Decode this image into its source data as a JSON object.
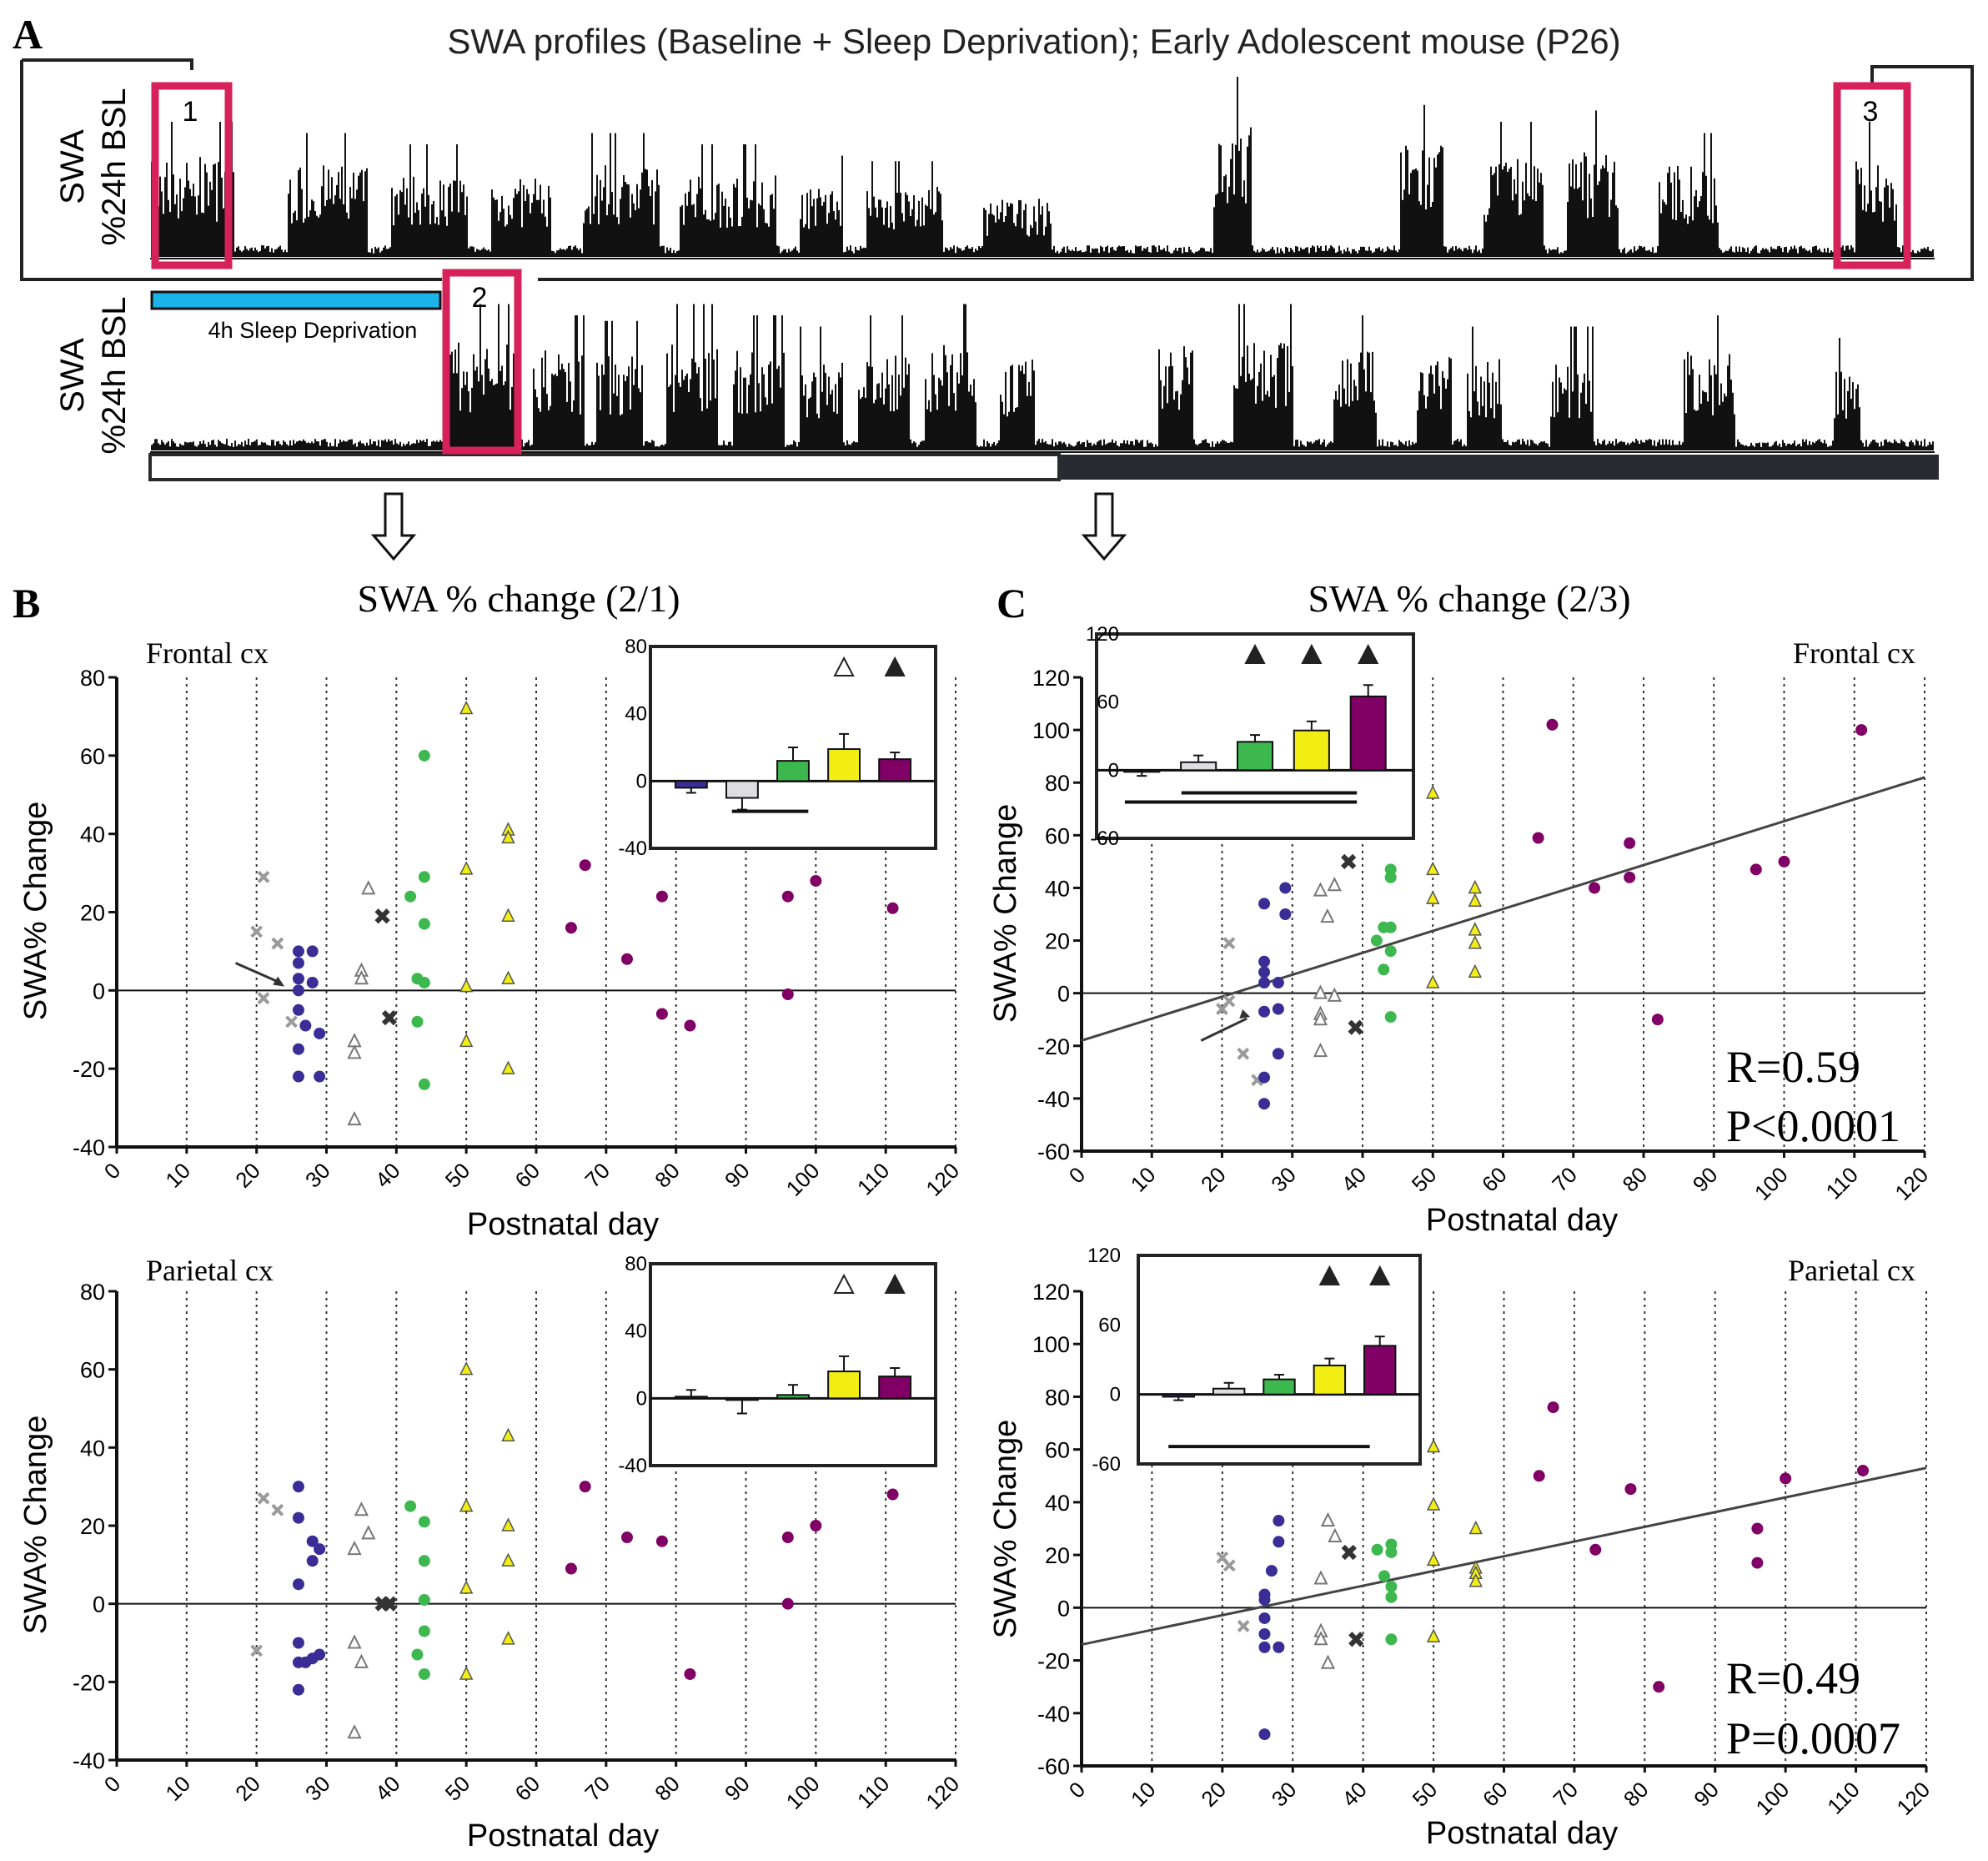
{
  "figure": {
    "panel_a_letter": "A",
    "panel_b_letter": "B",
    "panel_c_letter": "C",
    "panel_a_title": "SWA profiles (Baseline + Sleep Deprivation);  Early Adolescent mouse (P26)",
    "panel_a_ylabel_1": "SWA",
    "panel_a_ylabel_2": "%24h BSL",
    "sd_label": "4h Sleep Deprivation",
    "box_labels": [
      "1",
      "2",
      "3"
    ],
    "panel_b_title": "SWA % change (2/1)",
    "panel_c_title": "SWA % change (2/3)",
    "region_frontal": "Frontal cx",
    "region_parietal": "Parietal cx",
    "ylabel": "SWA% Change",
    "xlabel": "Postnatal day",
    "colors": {
      "red_box": "#d6215a",
      "sd_bar": "#1cb4e8",
      "black": "#000000",
      "purple": "#800066",
      "yellow": "#f2ee14",
      "green": "#3db84e",
      "blue": "#3a2d96",
      "grey": "#9a9a9a"
    }
  },
  "chart_data": [
    {
      "id": "B-frontal",
      "type": "scatter",
      "region": "Frontal cx",
      "xlabel": "Postnatal day",
      "ylabel": "SWA% Change",
      "xlim": [
        0,
        120
      ],
      "ylim": [
        -40,
        80
      ],
      "xticks": [
        0,
        10,
        20,
        30,
        40,
        50,
        60,
        70,
        80,
        90,
        100,
        110,
        120
      ],
      "yticks": [
        -40,
        -20,
        0,
        20,
        40,
        60,
        80
      ],
      "grid": "vertical dotted",
      "points": {
        "grey_x": [
          [
            20,
            15
          ],
          [
            21,
            29
          ],
          [
            21,
            -2
          ],
          [
            23,
            12
          ],
          [
            25,
            -8
          ]
        ],
        "blue_dot": [
          [
            26,
            10
          ],
          [
            26,
            7
          ],
          [
            26,
            3
          ],
          [
            26,
            0
          ],
          [
            26,
            -5
          ],
          [
            26,
            -15
          ],
          [
            26,
            -22
          ],
          [
            27,
            -9
          ],
          [
            28,
            10
          ],
          [
            28,
            2
          ],
          [
            29,
            -11
          ],
          [
            29,
            -22
          ]
        ],
        "grey_triangle": [
          [
            34,
            -13
          ],
          [
            34,
            -16
          ],
          [
            34,
            -33
          ],
          [
            35,
            5
          ],
          [
            35,
            3
          ],
          [
            36,
            26
          ]
        ],
        "black_x": [
          [
            38,
            19
          ],
          [
            39,
            -7
          ]
        ],
        "green_dot": [
          [
            42,
            24
          ],
          [
            43,
            3
          ],
          [
            43,
            -8
          ],
          [
            44,
            60
          ],
          [
            44,
            29
          ],
          [
            44,
            17
          ],
          [
            44,
            2
          ],
          [
            44,
            -24
          ]
        ],
        "yellow_triangle": [
          [
            50,
            72
          ],
          [
            50,
            31
          ],
          [
            50,
            1
          ],
          [
            50,
            -13
          ],
          [
            56,
            41
          ],
          [
            56,
            39
          ],
          [
            56,
            19
          ],
          [
            56,
            3
          ],
          [
            56,
            -20
          ]
        ],
        "purple_dot": [
          [
            65,
            16
          ],
          [
            67,
            32
          ],
          [
            73,
            8
          ],
          [
            78,
            24
          ],
          [
            78,
            -6
          ],
          [
            82,
            -9
          ],
          [
            96,
            24
          ],
          [
            96,
            -1
          ],
          [
            100,
            28
          ],
          [
            111,
            21
          ]
        ]
      },
      "inset": {
        "type": "bar",
        "ylim": [
          -40,
          80
        ],
        "yticks": [
          -40,
          0,
          40,
          80
        ],
        "values": [
          -4,
          -10,
          12,
          19,
          13
        ],
        "errors": [
          3,
          7,
          8,
          9,
          4
        ],
        "bar_colors": [
          "blue",
          "light-grey",
          "green",
          "yellow",
          "purple"
        ],
        "markers": [
          "open-triangle",
          "filled-triangle"
        ]
      }
    },
    {
      "id": "B-parietal",
      "type": "scatter",
      "region": "Parietal cx",
      "xlabel": "Postnatal day",
      "ylabel": "SWA% Change",
      "xlim": [
        0,
        120
      ],
      "ylim": [
        -40,
        80
      ],
      "xticks": [
        0,
        10,
        20,
        30,
        40,
        50,
        60,
        70,
        80,
        90,
        100,
        110,
        120
      ],
      "yticks": [
        -40,
        -20,
        0,
        20,
        40,
        60,
        80
      ],
      "grid": "vertical dotted",
      "points": {
        "grey_x": [
          [
            20,
            -12
          ],
          [
            21,
            27
          ],
          [
            23,
            24
          ]
        ],
        "blue_dot": [
          [
            26,
            30
          ],
          [
            26,
            22
          ],
          [
            26,
            5
          ],
          [
            26,
            -10
          ],
          [
            26,
            -15
          ],
          [
            26,
            -22
          ],
          [
            28,
            16
          ],
          [
            28,
            11
          ],
          [
            28,
            -14
          ],
          [
            29,
            14
          ],
          [
            29,
            -13
          ],
          [
            27,
            -15
          ]
        ],
        "grey_triangle": [
          [
            34,
            14
          ],
          [
            34,
            -10
          ],
          [
            34,
            -33
          ],
          [
            35,
            24
          ],
          [
            35,
            -15
          ],
          [
            36,
            18
          ]
        ],
        "black_x": [
          [
            38,
            0
          ],
          [
            39,
            0
          ]
        ],
        "green_dot": [
          [
            42,
            25
          ],
          [
            43,
            -13
          ],
          [
            44,
            21
          ],
          [
            44,
            11
          ],
          [
            44,
            1
          ],
          [
            44,
            -7
          ],
          [
            44,
            -18
          ]
        ],
        "yellow_triangle": [
          [
            50,
            60
          ],
          [
            50,
            25
          ],
          [
            50,
            4
          ],
          [
            50,
            -18
          ],
          [
            56,
            43
          ],
          [
            56,
            20
          ],
          [
            56,
            11
          ],
          [
            56,
            -9
          ]
        ],
        "purple_dot": [
          [
            65,
            9
          ],
          [
            67,
            30
          ],
          [
            73,
            17
          ],
          [
            78,
            16
          ],
          [
            82,
            -18
          ],
          [
            96,
            17
          ],
          [
            96,
            0
          ],
          [
            100,
            20
          ],
          [
            111,
            28
          ]
        ]
      },
      "inset": {
        "type": "bar",
        "ylim": [
          -40,
          80
        ],
        "yticks": [
          -40,
          0,
          40,
          80
        ],
        "values": [
          1,
          -1,
          2,
          16,
          13
        ],
        "errors": [
          4,
          8,
          6,
          9,
          5
        ],
        "bar_colors": [
          "blue",
          "light-grey",
          "green",
          "yellow",
          "purple"
        ],
        "markers": [
          "open-triangle",
          "filled-triangle"
        ]
      }
    },
    {
      "id": "C-frontal",
      "type": "scatter",
      "region": "Frontal cx",
      "xlabel": "Postnatal day",
      "ylabel": "SWA% Change",
      "xlim": [
        0,
        120
      ],
      "ylim": [
        -60,
        120
      ],
      "xticks": [
        0,
        10,
        20,
        30,
        40,
        50,
        60,
        70,
        80,
        90,
        100,
        110,
        120
      ],
      "yticks": [
        -60,
        -40,
        -20,
        0,
        20,
        40,
        60,
        80,
        100,
        120
      ],
      "grid": "vertical dotted",
      "stats": [
        "R=0.59",
        "P<0.0001"
      ],
      "regression": {
        "x": [
          0,
          120
        ],
        "y": [
          -18,
          82
        ]
      },
      "points": {
        "grey_x": [
          [
            20,
            -6
          ],
          [
            21,
            19
          ],
          [
            21,
            -3
          ],
          [
            23,
            -23
          ],
          [
            25,
            -33
          ]
        ],
        "blue_dot": [
          [
            26,
            34
          ],
          [
            26,
            12
          ],
          [
            26,
            8
          ],
          [
            26,
            4
          ],
          [
            26,
            -7
          ],
          [
            26,
            -32
          ],
          [
            26,
            -42
          ],
          [
            28,
            -6
          ],
          [
            28,
            -23
          ],
          [
            28,
            4
          ],
          [
            29,
            40
          ],
          [
            29,
            30
          ]
        ],
        "grey_triangle": [
          [
            34,
            39
          ],
          [
            34,
            0
          ],
          [
            34,
            -8
          ],
          [
            34,
            -10
          ],
          [
            34,
            -22
          ],
          [
            35,
            29
          ],
          [
            36,
            41
          ],
          [
            36,
            -1
          ]
        ],
        "black_x": [
          [
            38,
            50
          ],
          [
            39,
            -13
          ]
        ],
        "green_dot": [
          [
            42,
            20
          ],
          [
            43,
            9
          ],
          [
            43,
            25
          ],
          [
            44,
            47
          ],
          [
            44,
            44
          ],
          [
            44,
            25
          ],
          [
            44,
            16
          ],
          [
            44,
            -9
          ]
        ],
        "yellow_triangle": [
          [
            50,
            76
          ],
          [
            50,
            47
          ],
          [
            50,
            36
          ],
          [
            50,
            4
          ],
          [
            56,
            40
          ],
          [
            56,
            35
          ],
          [
            56,
            24
          ],
          [
            56,
            19
          ],
          [
            56,
            8
          ]
        ],
        "purple_dot": [
          [
            65,
            59
          ],
          [
            67,
            102
          ],
          [
            73,
            40
          ],
          [
            78,
            57
          ],
          [
            78,
            44
          ],
          [
            82,
            -10
          ],
          [
            96,
            47
          ],
          [
            100,
            50
          ],
          [
            111,
            100
          ]
        ]
      },
      "inset": {
        "type": "bar",
        "ylim": [
          -60,
          120
        ],
        "yticks": [
          -60,
          0,
          60,
          120
        ],
        "values": [
          -1,
          7,
          25,
          35,
          65
        ],
        "errors": [
          4,
          6,
          6,
          8,
          10
        ],
        "bar_colors": [
          "blue",
          "light-grey",
          "green",
          "yellow",
          "purple"
        ],
        "markers": [
          "filled-triangle",
          "filled-triangle",
          "filled-triangle"
        ]
      }
    },
    {
      "id": "C-parietal",
      "type": "scatter",
      "region": "Parietal cx",
      "xlabel": "Postnatal day",
      "ylabel": "SWA% Change",
      "xlim": [
        0,
        120
      ],
      "ylim": [
        -60,
        120
      ],
      "xticks": [
        0,
        10,
        20,
        30,
        40,
        50,
        60,
        70,
        80,
        90,
        100,
        110,
        120
      ],
      "yticks": [
        -60,
        -40,
        -20,
        0,
        20,
        40,
        60,
        80,
        100,
        120
      ],
      "grid": "vertical dotted",
      "stats": [
        "R=0.49",
        "P=0.0007"
      ],
      "regression": {
        "x": [
          0,
          120
        ],
        "y": [
          -14,
          53
        ]
      },
      "points": {
        "grey_x": [
          [
            20,
            19
          ],
          [
            21,
            16
          ],
          [
            23,
            -7
          ]
        ],
        "blue_dot": [
          [
            26,
            5
          ],
          [
            26,
            3
          ],
          [
            26,
            -4
          ],
          [
            26,
            -10
          ],
          [
            26,
            -15
          ],
          [
            26,
            -48
          ],
          [
            27,
            14
          ],
          [
            28,
            33
          ],
          [
            28,
            25
          ],
          [
            28,
            -15
          ]
        ],
        "grey_triangle": [
          [
            34,
            11
          ],
          [
            34,
            -9
          ],
          [
            34,
            -12
          ],
          [
            35,
            33
          ],
          [
            35,
            -21
          ],
          [
            36,
            27
          ]
        ],
        "black_x": [
          [
            38,
            21
          ],
          [
            39,
            -12
          ]
        ],
        "green_dot": [
          [
            42,
            22
          ],
          [
            43,
            12
          ],
          [
            44,
            24
          ],
          [
            44,
            21
          ],
          [
            44,
            8
          ],
          [
            44,
            4
          ],
          [
            44,
            -12
          ]
        ],
        "yellow_triangle": [
          [
            50,
            61
          ],
          [
            50,
            39
          ],
          [
            50,
            18
          ],
          [
            50,
            -11
          ],
          [
            56,
            30
          ],
          [
            56,
            15
          ],
          [
            56,
            13
          ],
          [
            56,
            10
          ]
        ],
        "purple_dot": [
          [
            65,
            50
          ],
          [
            67,
            76
          ],
          [
            73,
            22
          ],
          [
            78,
            45
          ],
          [
            82,
            -30
          ],
          [
            96,
            30
          ],
          [
            96,
            17
          ],
          [
            100,
            49
          ],
          [
            111,
            52
          ]
        ]
      },
      "inset": {
        "type": "bar",
        "ylim": [
          -60,
          120
        ],
        "yticks": [
          -60,
          0,
          60,
          120
        ],
        "values": [
          -2,
          5,
          13,
          25,
          42
        ],
        "errors": [
          3,
          5,
          4,
          6,
          8
        ],
        "bar_colors": [
          "blue",
          "light-grey",
          "green",
          "yellow",
          "purple"
        ],
        "markers": [
          "filled-triangle",
          "filled-triangle"
        ]
      }
    }
  ]
}
